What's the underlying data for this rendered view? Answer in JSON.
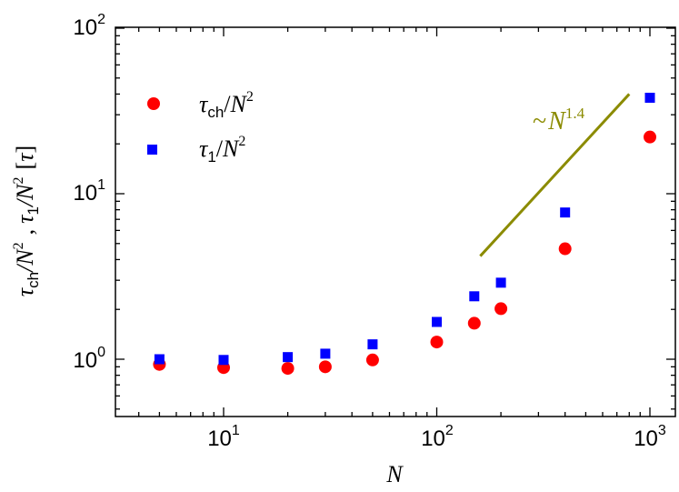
{
  "chart_data": {
    "type": "scatter",
    "xscale": "log",
    "yscale": "log",
    "xlim": [
      3.5,
      1250
    ],
    "ylim": [
      0.5,
      100
    ],
    "xlabel": "N",
    "ylabel": {
      "tau_symbol": "τ",
      "ch_sub": "ch",
      "one_sub": "1",
      "n_symbol": "N",
      "exp2": "2",
      "separator": ",",
      "unit_symbol": "τ"
    },
    "x_ticks": [
      {
        "value": 10,
        "base": "10",
        "exp": "1"
      },
      {
        "value": 100,
        "base": "10",
        "exp": "2"
      },
      {
        "value": 1000,
        "base": "10",
        "exp": "3"
      }
    ],
    "y_ticks": [
      {
        "value": 1,
        "label": "10",
        "exp": "0"
      },
      {
        "value": 10,
        "label": "10",
        "exp": "1"
      },
      {
        "value": 100,
        "label": "10",
        "exp": "2"
      }
    ],
    "series": [
      {
        "name": "τ_ch/N^2",
        "marker": "circle",
        "color": "#ff0000",
        "x": [
          5,
          10,
          20,
          30,
          50,
          100,
          150,
          200,
          400,
          1000
        ],
        "y": [
          0.93,
          0.89,
          0.88,
          0.9,
          0.99,
          1.27,
          1.65,
          2.02,
          4.65,
          22.0
        ]
      },
      {
        "name": "τ_1/N^2",
        "marker": "square",
        "color": "#0000ff",
        "x": [
          5,
          10,
          20,
          30,
          50,
          100,
          150,
          200,
          400,
          1000
        ],
        "y": [
          1.0,
          0.99,
          1.03,
          1.08,
          1.23,
          1.68,
          2.4,
          2.9,
          7.7,
          38.0
        ]
      }
    ],
    "legend": [
      {
        "symbol": "τ",
        "sub": "ch",
        "slash": "/",
        "n": "N",
        "exp": "2",
        "color": "#ff0000",
        "marker": "circle"
      },
      {
        "symbol": "τ",
        "sub": "1",
        "slash": "/",
        "n": "N",
        "exp": "2",
        "color": "#0000ff",
        "marker": "square"
      }
    ],
    "legend_position": "top-left",
    "annotation": {
      "tilde": "~",
      "base": "N",
      "exp": "1.4",
      "color": "#8b8b00",
      "line_from": [
        160,
        4.2
      ],
      "line_to": [
        800,
        40
      ]
    }
  }
}
